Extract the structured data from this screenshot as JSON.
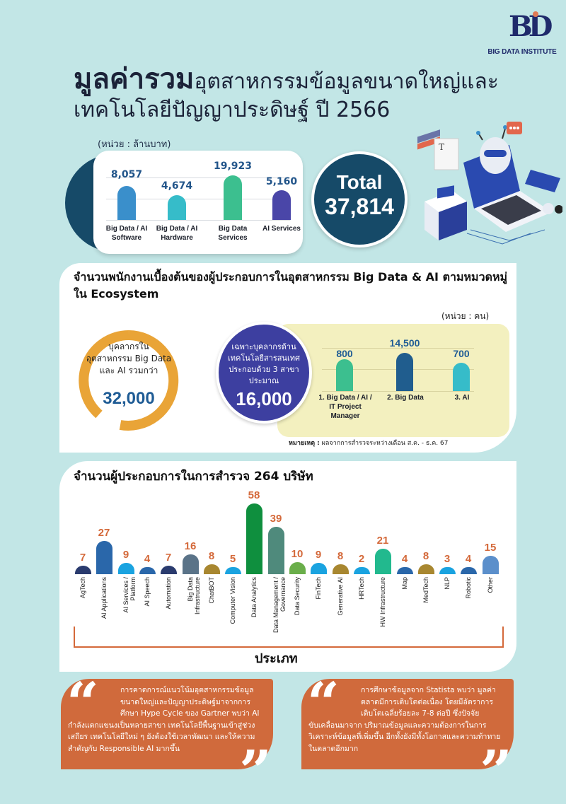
{
  "logo": {
    "mark": "BD",
    "text": "BIG DATA INSTITUTE"
  },
  "title": {
    "bold": "มูลค่ารวม",
    "rest": "อุตสาหกรรมข้อมูลขนาดใหญ่และ",
    "line2": "เทคโนโลยีปัญญาประดิษฐ์ ปี 2566"
  },
  "revenue": {
    "unit": "(หน่วย : ล้านบาท)",
    "total_label": "Total",
    "total_value": "37,814"
  },
  "employees": {
    "title": "จำนวนพนักงานเบื้องต้นของผู้ประกอบการในอุตสาหกรรม Big Data & AI ตามหมวดหมู่ใน Ecosystem",
    "unit": "(หน่วย : คน)",
    "ring_text": "บุคลากรใน อุตสาหกรรม Big Data และ AI รวมกว่า",
    "ring_value": "32,000",
    "circle_text": "เฉพาะบุคลากรด้านเทคโนโลยีสารสนเทศ ประกอบด้วย 3 สาขา ประมาณ",
    "circle_value": "16,000",
    "note_label": "หมายเหตุ :",
    "note_text": " ผลจากการสำรวจระหว่างเดือน ส.ค. - ธ.ค. 67"
  },
  "companies": {
    "title": "จำนวนผู้ประกอบการในการสำรวจ 264 บริษัท",
    "axis_title": "ประเภท"
  },
  "quotes": [
    {
      "lead": "การคาดการณ์แนวโน้มอุตสาหกรรมข้อมูลขนาดใหญ่และปัญญาประดิษฐ์มาจากการศึกษา Hype Cycle ของ Gartner พบว่า AI",
      "rest": "กำลังแตกแขนงเป็นหลายสาขา เทคโนโลยีพื้นฐานเข้าสู่ช่วงเสถียร เทคโนโลยีใหม่ ๆ ยังต้องใช้เวลาพัฒนา และให้ความสำคัญกับ Responsible AI มากขึ้น"
    },
    {
      "lead": "การศึกษาข้อมูลจาก Statista พบว่า มูลค่าตลาดมีการเติบโตต่อเนื่อง โดยมีอัตราการเติบโตเฉลี่ยร้อยละ 7-8 ต่อปี ซึ่งปัจจัย",
      "rest": "ขับเคลื่อนมาจาก ปริมาณข้อมูลและความต้องการในการวิเคราะห์ข้อมูลที่เพิ่มขึ้น อีกทั้งยังมีทั้งโอกาสและความท้าทายในตลาดอีกมาก"
    }
  ],
  "colors": {
    "background": "#c2e6e6",
    "navy": "#164a68",
    "orange": "#d06a3c",
    "gold": "#e9a437",
    "purple": "#3d3fa0",
    "value_blue": "#22558a"
  },
  "chart_data": [
    {
      "type": "bar",
      "title": "มูลค่ารวมอุตสาหกรรมข้อมูลขนาดใหญ่และเทคโนโลยีปัญญาประดิษฐ์ ปี 2566",
      "ylabel": "ล้านบาท",
      "categories": [
        "Big Data / AI Software",
        "Big Data / AI Hardware",
        "Big Data Services",
        "AI Services"
      ],
      "values": [
        8057,
        4674,
        19923,
        5160
      ],
      "labels": [
        "8,057",
        "4,674",
        "19,923",
        "5,160"
      ],
      "colors": [
        "#3a8fcb",
        "#36bcc9",
        "#3cbf8f",
        "#4a46a8"
      ],
      "total": 37814,
      "grid": true
    },
    {
      "type": "bar",
      "title": "จำนวนพนักงานเบื้องต้นของผู้ประกอบการในอุตสาหกรรม Big Data & AI ตามหมวดหมู่ใน Ecosystem",
      "ylabel": "คน",
      "categories": [
        "1. Big Data / AI / IT Project Manager",
        "2. Big Data",
        "3. AI"
      ],
      "values": [
        800,
        14500,
        700
      ],
      "labels": [
        "800",
        "14,500",
        "700"
      ],
      "colors": [
        "#3cbf8f",
        "#205d8e",
        "#36bcc9"
      ],
      "grid": true
    },
    {
      "type": "bar",
      "title": "จำนวนผู้ประกอบการในการสำรวจ 264 บริษัท",
      "xlabel": "ประเภท",
      "categories": [
        "AgTech",
        "AI Applications",
        "AI Services / Platform",
        "AI Speech",
        "Automation",
        "Big Data Infrastructure",
        "ChatBOT",
        "Computer Vision",
        "Data Analytics",
        "Data Management / Governance",
        "Data Security",
        "FinTech",
        "Generative AI",
        "HRTech",
        "HW Infrastructure",
        "Map",
        "MedTech",
        "NLP",
        "Robotic",
        "Other"
      ],
      "values": [
        7,
        27,
        9,
        4,
        7,
        16,
        8,
        5,
        58,
        39,
        10,
        9,
        8,
        2,
        21,
        4,
        8,
        3,
        4,
        15
      ],
      "colors": [
        "#2a3b6e",
        "#2a67aa",
        "#1aa3e0",
        "#2a67aa",
        "#2a3b6e",
        "#5a7388",
        "#a88730",
        "#1aa3e0",
        "#0f8f3e",
        "#4f8a7c",
        "#6aae4a",
        "#1aa3e0",
        "#a88730",
        "#1aa3e0",
        "#22b98e",
        "#2a67aa",
        "#a88730",
        "#1aa3e0",
        "#2a67aa",
        "#5b8fcb"
      ],
      "grid": false
    }
  ]
}
